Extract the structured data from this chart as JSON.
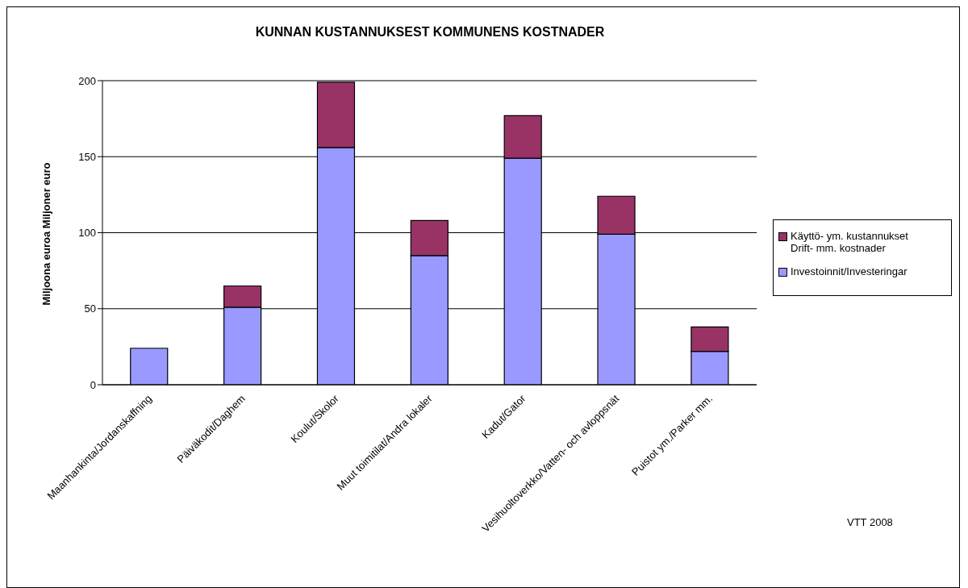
{
  "chart_data": {
    "type": "bar",
    "title": "KUNNAN KUSTANNUKSEST KOMMUNENS KOSTNADER",
    "ylabel": "Miljoona euroa Miljoner euro",
    "categories": [
      "Maanhankinta/Jordanskaffning",
      "Päiväkodit/Daghem",
      "Koulut/Skolor",
      "Muut toimitilat/Andra lokaler",
      "Kadut/Gator",
      "Vesihuoltoverkko/Vatten- och avloppsnät",
      "Puistot ym./Parker mm."
    ],
    "series": [
      {
        "name": "Investoinnit/Investeringar",
        "color": "#9999ff",
        "values": [
          24,
          51,
          156,
          85,
          149,
          99,
          22
        ]
      },
      {
        "name": "Käyttö- ym. kustannukset\nDrift- mm. kostnader",
        "color": "#993366",
        "values": [
          null,
          14,
          43,
          23,
          28,
          25,
          16
        ]
      }
    ],
    "stacked": true,
    "ylim": [
      0,
      200
    ],
    "yticks": [
      0,
      50,
      100,
      150,
      200
    ],
    "grid": "y",
    "legend": "right",
    "annotations": [
      "VTT 2008"
    ]
  }
}
